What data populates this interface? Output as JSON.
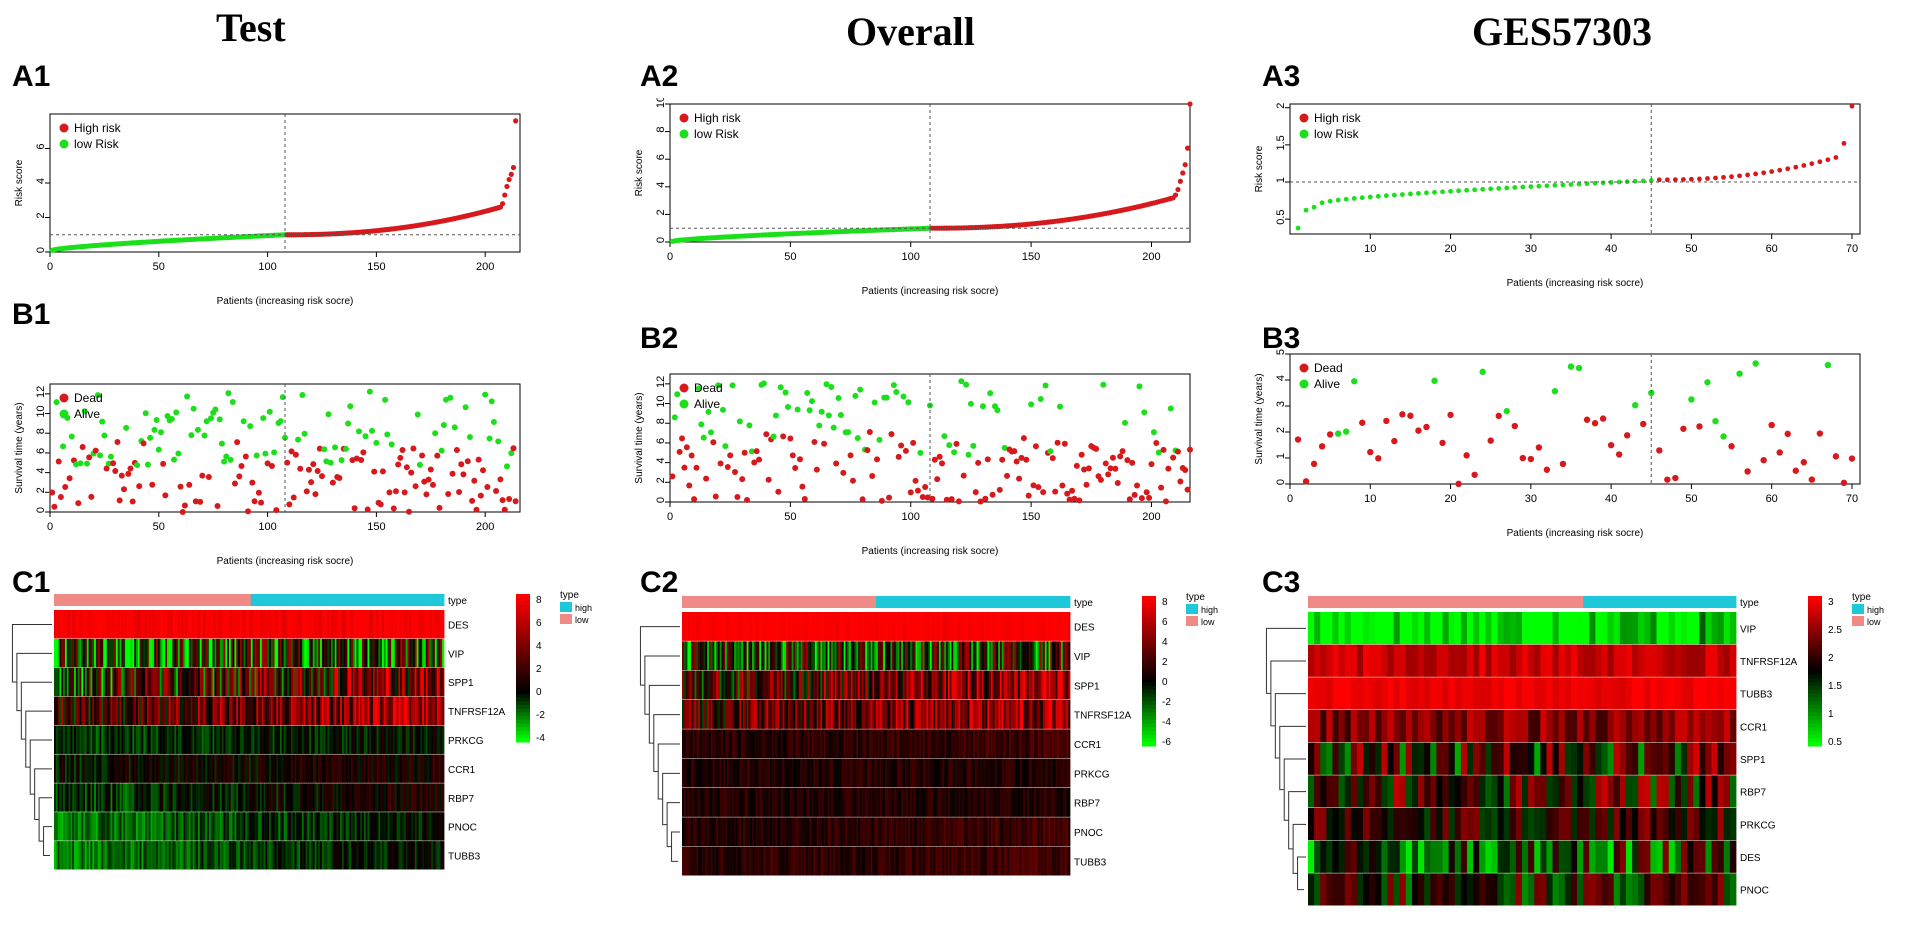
{
  "columns": [
    {
      "title": "Test",
      "labels": {
        "a": "A1",
        "b": "B1",
        "c": "C1"
      }
    },
    {
      "title": "Overall",
      "labels": {
        "a": "A2",
        "b": "B2",
        "c": "C2"
      }
    },
    {
      "title": "GES57303",
      "labels": {
        "a": "A3",
        "b": "B3",
        "c": "C3"
      }
    }
  ],
  "colors": {
    "high": "#d7191c",
    "low": "#1adf1a",
    "type_high": "#1ec8d8",
    "type_low": "#f08a86",
    "heat_high": "#ff0000",
    "heat_mid": "#000000",
    "heat_low": "#00ff00"
  },
  "chart_data": [
    {
      "id": "A1",
      "type": "scatter",
      "kind": "risk",
      "xlabel": "Patients (increasing risk socre)",
      "ylabel": "Risk score",
      "xlim": [
        0,
        216
      ],
      "ylim": [
        0,
        8
      ],
      "xticks": [
        0,
        50,
        100,
        150,
        200
      ],
      "yticks": [
        0,
        2,
        4,
        6
      ],
      "n": 214,
      "cutoff_index": 108,
      "cutoff_score": 1.0,
      "low_range": [
        0.1,
        1.0
      ],
      "high_range": [
        1.0,
        2.6
      ],
      "tail": [
        2.8,
        3.3,
        3.8,
        4.2,
        4.5,
        4.9,
        7.6
      ],
      "legend": [
        "High risk",
        "low Risk"
      ]
    },
    {
      "id": "A2",
      "type": "scatter",
      "kind": "risk",
      "xlabel": "Patients (increasing risk socre)",
      "ylabel": "Risk score",
      "xlim": [
        0,
        216
      ],
      "ylim": [
        0,
        10
      ],
      "xticks": [
        0,
        50,
        100,
        150,
        200
      ],
      "yticks": [
        0,
        2,
        4,
        6,
        8,
        10
      ],
      "n": 216,
      "cutoff_index": 108,
      "cutoff_score": 1.0,
      "low_range": [
        0.05,
        1.0
      ],
      "high_range": [
        1.0,
        3.2
      ],
      "tail": [
        3.4,
        3.8,
        4.4,
        5.0,
        5.6,
        6.8,
        10.0
      ],
      "legend": [
        "High risk",
        "low Risk"
      ]
    },
    {
      "id": "A3",
      "type": "scatter",
      "kind": "risk",
      "xlabel": "Patients (increasing risk socre)",
      "ylabel": "Risk score",
      "xlim": [
        0,
        71
      ],
      "ylim": [
        0.3,
        2.05
      ],
      "xticks": [
        10,
        20,
        30,
        40,
        50,
        60,
        70
      ],
      "yticks": [
        0.5,
        1.0,
        1.5,
        2.0
      ],
      "n": 70,
      "cutoff_index": 45,
      "cutoff_score": 1.0,
      "low_range": [
        0.72,
        1.02
      ],
      "high_range": [
        1.03,
        1.3
      ],
      "start": [
        0.38,
        0.62,
        0.66
      ],
      "tail": [
        1.33,
        1.52,
        2.02
      ],
      "legend": [
        "High risk",
        "low Risk"
      ]
    },
    {
      "id": "B1",
      "type": "scatter",
      "kind": "survival",
      "xlabel": "Patients (increasing risk socre)",
      "ylabel": "Survival time (years)",
      "xlim": [
        0,
        216
      ],
      "ylim": [
        0,
        13
      ],
      "xticks": [
        0,
        50,
        100,
        150,
        200
      ],
      "yticks": [
        0,
        2,
        4,
        6,
        8,
        10,
        12
      ],
      "n": 214,
      "cutoff_index": 108,
      "seed": 11,
      "maxy": 13,
      "legend": [
        "Dead",
        "Alive"
      ]
    },
    {
      "id": "B2",
      "type": "scatter",
      "kind": "survival",
      "xlabel": "Patients (increasing risk socre)",
      "ylabel": "Survival time (years)",
      "xlim": [
        0,
        216
      ],
      "ylim": [
        0,
        13
      ],
      "xticks": [
        0,
        50,
        100,
        150,
        200
      ],
      "yticks": [
        0,
        2,
        4,
        6,
        8,
        10,
        12
      ],
      "n": 216,
      "cutoff_index": 108,
      "seed": 23,
      "maxy": 13,
      "legend": [
        "Dead",
        "Alive"
      ]
    },
    {
      "id": "B3",
      "type": "scatter",
      "kind": "survival",
      "xlabel": "Patients (increasing risk socre)",
      "ylabel": "Survival time (years)",
      "xlim": [
        0,
        71
      ],
      "ylim": [
        0,
        5
      ],
      "xticks": [
        0,
        10,
        20,
        30,
        40,
        50,
        60,
        70
      ],
      "yticks": [
        0,
        1,
        2,
        3,
        4,
        5
      ],
      "n": 70,
      "cutoff_index": 45,
      "seed": 37,
      "maxy": 4.9,
      "legend": [
        "Dead",
        "Alive"
      ]
    },
    {
      "id": "C1",
      "type": "heatmap",
      "genes": [
        "DES",
        "VIP",
        "SPP1",
        "TNFRSF12A",
        "PRKCG",
        "CCR1",
        "RBP7",
        "PNOC",
        "TUBB3"
      ],
      "profiles": [
        [
          8,
          8
        ],
        [
          -1,
          0
        ],
        [
          0,
          4
        ],
        [
          2,
          5
        ],
        [
          -1,
          0
        ],
        [
          0,
          1
        ],
        [
          -1,
          1
        ],
        [
          -2,
          0
        ],
        [
          -2,
          0
        ]
      ],
      "noise": [
        1,
        6,
        5,
        4,
        1.2,
        1.5,
        1.5,
        1.2,
        1.2
      ],
      "n": 214,
      "cutoff_index": 108,
      "seed": 5,
      "color_range": [
        -4,
        8
      ],
      "legend_ticks": [
        "8",
        "6",
        "4",
        "2",
        "0",
        "-2",
        "-4"
      ],
      "type_title": "type",
      "type_labels": [
        "high",
        "low"
      ]
    },
    {
      "id": "C2",
      "type": "heatmap",
      "genes": [
        "DES",
        "VIP",
        "SPP1",
        "TNFRSF12A",
        "CCR1",
        "PRKCG",
        "RBP7",
        "PNOC",
        "TUBB3"
      ],
      "profiles": [
        [
          8,
          8
        ],
        [
          -1,
          0
        ],
        [
          1,
          5
        ],
        [
          2,
          5
        ],
        [
          1,
          2
        ],
        [
          1,
          1
        ],
        [
          1,
          1
        ],
        [
          1,
          2
        ],
        [
          1,
          2
        ]
      ],
      "noise": [
        0.5,
        6,
        5,
        4,
        1.2,
        1.2,
        1.2,
        1.2,
        1.2
      ],
      "n": 216,
      "cutoff_index": 108,
      "seed": 9,
      "color_range": [
        -6,
        8
      ],
      "legend_ticks": [
        "8",
        "6",
        "4",
        "2",
        "0",
        "-2",
        "-4",
        "-6"
      ],
      "type_title": "type",
      "type_labels": [
        "high",
        "low"
      ]
    },
    {
      "id": "C3",
      "type": "heatmap",
      "genes": [
        "VIP",
        "TNFRSF12A",
        "TUBB3",
        "CCR1",
        "SPP1",
        "RBP7",
        "PRKCG",
        "DES",
        "PNOC"
      ],
      "profiles": [
        [
          0.5,
          0.8
        ],
        [
          2.9,
          2.9
        ],
        [
          3.1,
          3.1
        ],
        [
          2.5,
          2.6
        ],
        [
          1.9,
          2.0
        ],
        [
          2.0,
          2.1
        ],
        [
          2.0,
          2.1
        ],
        [
          1.5,
          1.6
        ],
        [
          1.8,
          1.9
        ]
      ],
      "noise": [
        0.6,
        0.25,
        0.1,
        0.4,
        1.0,
        0.9,
        0.6,
        1.0,
        0.8
      ],
      "n": 70,
      "cutoff_index": 45,
      "seed": 17,
      "color_range": [
        0.5,
        3.2
      ],
      "legend_ticks": [
        "3",
        "2.5",
        "2",
        "1.5",
        "1",
        "0.5"
      ],
      "type_title": "type",
      "type_labels": [
        "high",
        "low"
      ]
    }
  ]
}
